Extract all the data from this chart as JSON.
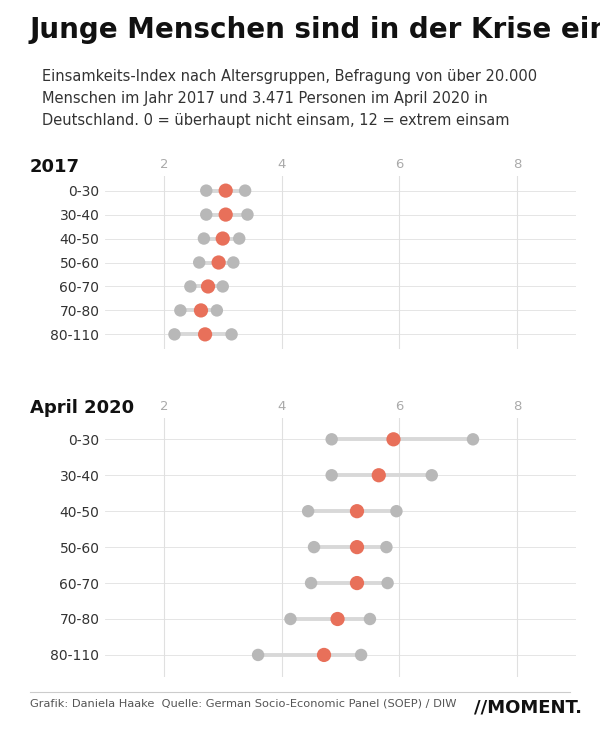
{
  "title": "Junge Menschen sind in der Krise einsamer",
  "subtitle": "Einsamkeits-Index nach Altersgruppen, Befragung von über 20.000\nMenschen im Jahr 2017 und 3.471 Personen im April 2020 in\nDeutschland. 0 = überhaupt nicht einsam, 12 = extrem einsam",
  "footer": "Grafik: Daniela Haake  Quelle: German Socio-Economic Panel (SOEP) / DIW",
  "moment_logo": "//MOMENT.",
  "section_2017": {
    "label": "2017",
    "xmin": 1,
    "xmax": 9,
    "xticks": [
      2,
      4,
      6,
      8
    ],
    "data": [
      {
        "category": "0-30",
        "low": 2.72,
        "mid": 3.05,
        "high": 3.38
      },
      {
        "category": "30-40",
        "low": 2.72,
        "mid": 3.05,
        "high": 3.42
      },
      {
        "category": "40-50",
        "low": 2.68,
        "mid": 3.0,
        "high": 3.28
      },
      {
        "category": "50-60",
        "low": 2.6,
        "mid": 2.93,
        "high": 3.18
      },
      {
        "category": "60-70",
        "low": 2.45,
        "mid": 2.75,
        "high": 3.0
      },
      {
        "category": "70-80",
        "low": 2.28,
        "mid": 2.63,
        "high": 2.9
      },
      {
        "category": "80-110",
        "low": 2.18,
        "mid": 2.7,
        "high": 3.15
      }
    ]
  },
  "section_2020": {
    "label": "April 2020",
    "xmin": 1,
    "xmax": 9,
    "xticks": [
      2,
      4,
      6,
      8
    ],
    "data": [
      {
        "category": "0-30",
        "low": 4.85,
        "mid": 5.9,
        "high": 7.25
      },
      {
        "category": "30-40",
        "low": 4.85,
        "mid": 5.65,
        "high": 6.55
      },
      {
        "category": "40-50",
        "low": 4.45,
        "mid": 5.28,
        "high": 5.95
      },
      {
        "category": "50-60",
        "low": 4.55,
        "mid": 5.28,
        "high": 5.78
      },
      {
        "category": "60-70",
        "low": 4.5,
        "mid": 5.28,
        "high": 5.8
      },
      {
        "category": "70-80",
        "low": 4.15,
        "mid": 4.95,
        "high": 5.5
      },
      {
        "category": "80-110",
        "low": 3.6,
        "mid": 4.72,
        "high": 5.35
      }
    ]
  },
  "dot_color_mid": "#e8705a",
  "dot_color_ends": "#b8b8b8",
  "line_color": "#d8d8d8",
  "background_color": "#ffffff",
  "grid_color": "#e0e0e0",
  "title_fontsize": 20,
  "subtitle_fontsize": 10.5,
  "section_label_fontsize": 13,
  "tick_fontsize": 9.5,
  "cat_fontsize": 10
}
